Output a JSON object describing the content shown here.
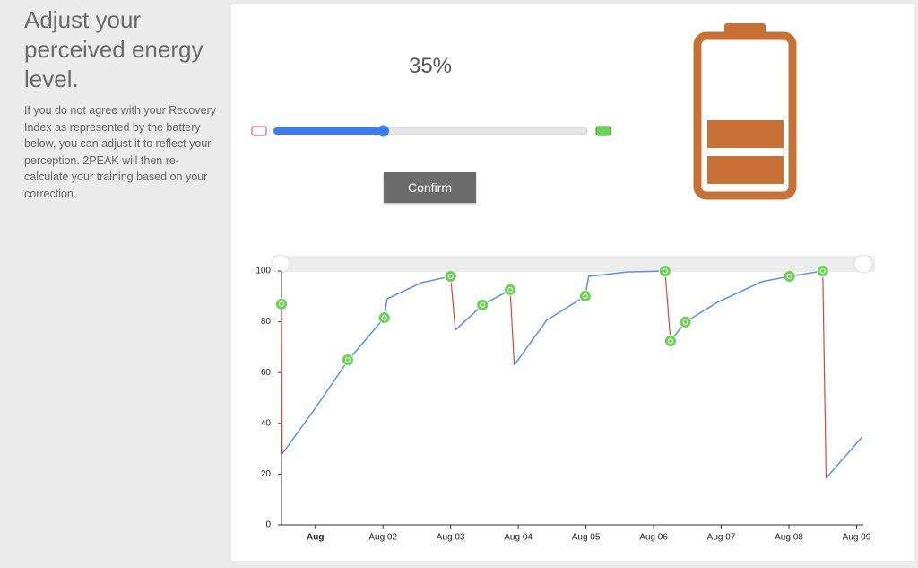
{
  "heading": "Adjust your perceived energy level.",
  "description": "If you do not agree with your Recovery Index as represented by the battery below, you can adjust it to reflect your perception. 2PEAK will then re-calculate your training based on your correction.",
  "slider": {
    "value": 35,
    "label": "35%",
    "min": 0,
    "max": 100
  },
  "button": "Confirm",
  "chart_data": {
    "type": "line",
    "x": [
      0.01,
      0.5,
      0.99,
      1.52,
      1.56,
      2.07,
      2.5,
      null,
      2.57,
      2.97,
      3.38,
      null,
      3.44,
      3.92,
      4.49,
      4.54,
      5.11,
      5.67,
      null,
      5.75,
      5.97,
      6.44,
      7.1,
      7.51,
      8.0,
      null,
      8.05,
      8.58
    ],
    "series": [
      {
        "color": "#5b8fe8",
        "values": [
          28,
          46,
          65,
          81.6,
          89,
          95.4,
          97.9,
          null,
          76.7,
          86.6,
          92.6,
          null,
          62.9,
          80.6,
          90.1,
          97.9,
          99.6,
          100,
          null,
          72.4,
          79.9,
          87.6,
          95.8,
          97.9,
          100,
          null,
          18.4,
          34.6
        ]
      }
    ],
    "drops": {
      "color": "#d04a3a",
      "x": [
        0,
        2.5,
        3.38,
        5.67,
        8.0
      ],
      "x_end": [
        0.01,
        2.57,
        3.44,
        5.75,
        8.05
      ],
      "from": [
        87,
        97.9,
        92.6,
        100,
        100
      ],
      "to": [
        28,
        76.7,
        62.9,
        72.4,
        18.4
      ]
    },
    "activities": {
      "color": "#6fd058",
      "x": [
        0,
        0.98,
        1.52,
        2.5,
        2.97,
        3.38,
        4.49,
        5.67,
        5.75,
        5.97,
        7.51,
        8.0
      ],
      "values": [
        87,
        65,
        81.6,
        97.9,
        86.6,
        92.6,
        90.1,
        100,
        72.4,
        79.9,
        97.9,
        100
      ]
    },
    "xlim": [
      0,
      8.6
    ],
    "xticks": [
      {
        "value": 0.5,
        "label": "Aug"
      },
      {
        "value": 1.5,
        "label": "Aug 02"
      },
      {
        "value": 2.5,
        "label": "Aug 03"
      },
      {
        "value": 3.5,
        "label": "Aug 04"
      },
      {
        "value": 4.5,
        "label": "Aug 05"
      },
      {
        "value": 5.5,
        "label": "Aug 06"
      },
      {
        "value": 6.5,
        "label": "Aug 07"
      },
      {
        "value": 7.5,
        "label": "Aug 08"
      },
      {
        "value": 8.5,
        "label": "Aug 09"
      }
    ],
    "ylim": [
      0,
      100
    ],
    "yticks": [
      0,
      20,
      40,
      60,
      80,
      100
    ]
  }
}
